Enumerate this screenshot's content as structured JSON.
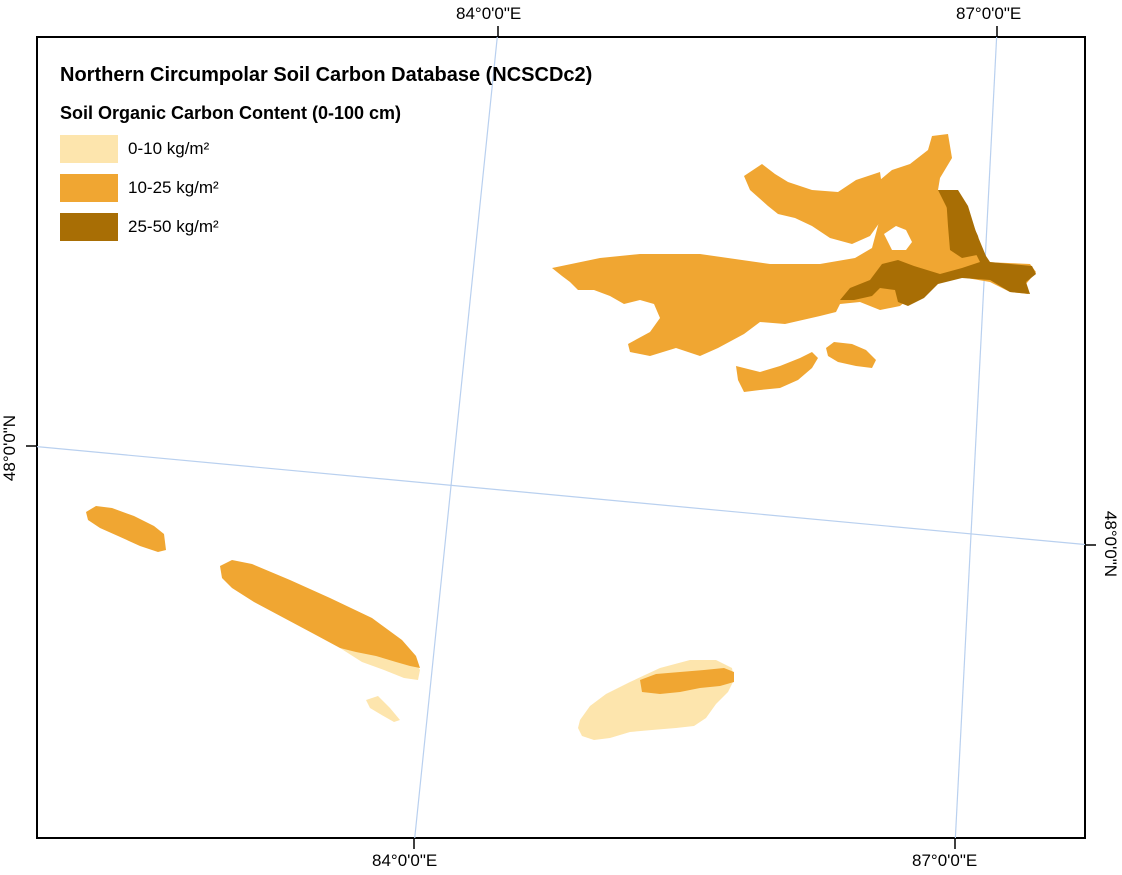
{
  "map": {
    "title": "Northern Circumpolar Soil Carbon Database (NCSCDc2)",
    "subtitle": "Soil Organic Carbon Content (0-100 cm)",
    "legend": [
      {
        "label": "0-10 kg/m²",
        "color": "#fde5ad"
      },
      {
        "label": "10-25 kg/m²",
        "color": "#f0a632"
      },
      {
        "label": "25-50 kg/m²",
        "color": "#a86e05"
      }
    ],
    "graticule_color": "#b9d0ef",
    "grid_labels": {
      "top": [
        "84°0'0\"E",
        "87°0'0\"E"
      ],
      "bottom": [
        "84°0'0\"E",
        "87°0'0\"E"
      ],
      "left": [
        "48°0'0\"N"
      ],
      "right": [
        "48°0'0\"N"
      ]
    }
  }
}
